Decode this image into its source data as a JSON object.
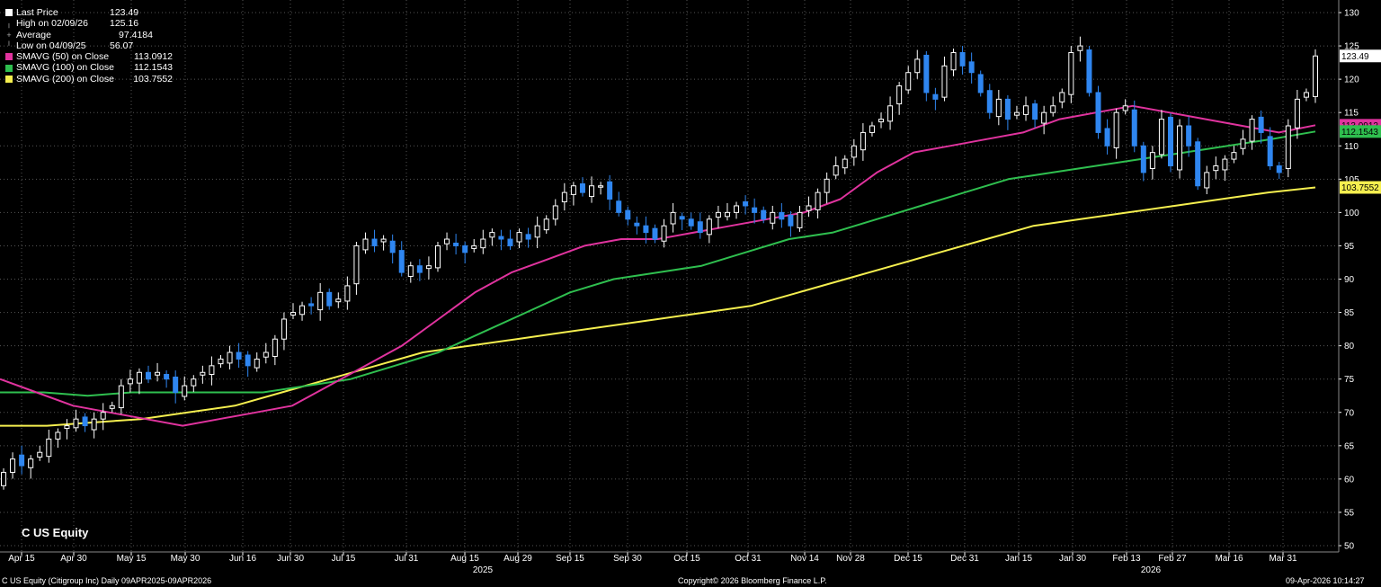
{
  "ticker_label": "C US Equity",
  "legend": {
    "last_price": {
      "label": "Last Price",
      "value": "123.49"
    },
    "high": {
      "label": "High on 02/09/26",
      "value": "125.16"
    },
    "average": {
      "label": "Average",
      "value": "97.4184"
    },
    "low": {
      "label": "Low on 04/09/25",
      "value": "56.07"
    },
    "sma50": {
      "label": "SMAVG (50)  on Close",
      "value": "113.0912"
    },
    "sma100": {
      "label": "SMAVG (100)  on Close",
      "value": "112.1543"
    },
    "sma200": {
      "label": "SMAVG (200)  on Close",
      "value": "103.7552"
    }
  },
  "footer": {
    "left": "C US Equity (Citigroup Inc) Daily 09APR2025-09APR2026",
    "center": "Copyright© 2026 Bloomberg Finance L.P.",
    "right": "09-Apr-2026 10:14:27"
  },
  "colors": {
    "background": "#000000",
    "up_candle": "#ffffff",
    "down_candle": "#2f86f0",
    "sma50": "#e0339e",
    "sma100": "#2fbf4f",
    "sma200": "#f5ef4f",
    "grid": "#555555"
  },
  "chart_data": {
    "type": "candlestick",
    "title": "",
    "ylim": [
      50,
      130
    ],
    "y_ticks": [
      "50",
      "55",
      "60",
      "65",
      "70",
      "75",
      "80",
      "85",
      "90",
      "95",
      "100",
      "105",
      "110",
      "115",
      "120",
      "125",
      "130"
    ],
    "x_ticks": [
      "Apr 15",
      "Apr 30",
      "May 15",
      "May 30",
      "Jun 16",
      "Jun 30",
      "Jul 15",
      "Jul 31",
      "Aug 15",
      "Aug 29",
      "Sep 15",
      "Sep 30",
      "Oct 15",
      "Oct 31",
      "Nov 14",
      "Nov 28",
      "Dec 15",
      "Dec 31",
      "Jan 15",
      "Jan 30",
      "Feb 13",
      "Feb 27",
      "Mar 16",
      "Mar 31"
    ],
    "year_labels": [
      "2025",
      "2026"
    ],
    "price_tags": [
      {
        "label": "123.49",
        "value": 123.49,
        "color": "#ffffff"
      },
      {
        "label": "113.0912",
        "value": 113.09,
        "color": "#e0339e"
      },
      {
        "label": "112.1543",
        "value": 112.15,
        "color": "#2fbf4f"
      },
      {
        "label": "103.7552",
        "value": 103.76,
        "color": "#f5ef4f"
      }
    ],
    "close_series": [
      61,
      63,
      62,
      63,
      64,
      66,
      67,
      68,
      69,
      68,
      69,
      70,
      71,
      74,
      75,
      76,
      75,
      76,
      75,
      73,
      74,
      75,
      76,
      77,
      78,
      79,
      78,
      77,
      78,
      79,
      81,
      84,
      85,
      86,
      86,
      88,
      86,
      87,
      89,
      95,
      96,
      95,
      96,
      94,
      91,
      92,
      91,
      92,
      95,
      96,
      95,
      94,
      95,
      96,
      97,
      96,
      95,
      97,
      96,
      98,
      99,
      101,
      103,
      104,
      103,
      104,
      104,
      102,
      100,
      99,
      98,
      97,
      96,
      98,
      100,
      99,
      98,
      97,
      99,
      100,
      100,
      101,
      101,
      100,
      99,
      100,
      99,
      98,
      100,
      101,
      103,
      105,
      107,
      108,
      110,
      112,
      113,
      114,
      116,
      119,
      121,
      123,
      118,
      117,
      122,
      124,
      122,
      121,
      118,
      115,
      117,
      114,
      115,
      116,
      114,
      115,
      116,
      118,
      124,
      125,
      118,
      112,
      110,
      115,
      116,
      110,
      106,
      109,
      114,
      107,
      113,
      110,
      104,
      106,
      107,
      108,
      109,
      111,
      114,
      112,
      107,
      106,
      113,
      117,
      118,
      123.49
    ],
    "sma50_series": [
      75,
      73,
      71,
      70,
      69,
      68,
      69,
      70,
      71,
      74,
      77,
      80,
      84,
      88,
      91,
      93,
      95,
      96,
      96,
      97,
      98,
      99,
      100,
      102,
      106,
      109,
      110,
      111,
      112,
      114,
      115,
      116,
      115,
      114,
      113,
      112,
      113.09
    ],
    "sma100_series": [
      73,
      73,
      72.5,
      73,
      73,
      73,
      73,
      74,
      75,
      77,
      79,
      82,
      85,
      88,
      90,
      91,
      92,
      94,
      96,
      97,
      99,
      101,
      103,
      105,
      106,
      107,
      108,
      109,
      110,
      111,
      112.15
    ],
    "sma200_series": [
      68,
      68,
      68.5,
      69,
      70,
      71,
      73,
      75,
      77,
      79,
      80,
      81,
      82,
      83,
      84,
      85,
      86,
      88,
      90,
      92,
      94,
      96,
      98,
      99,
      100,
      101,
      102,
      103,
      103.76
    ]
  }
}
